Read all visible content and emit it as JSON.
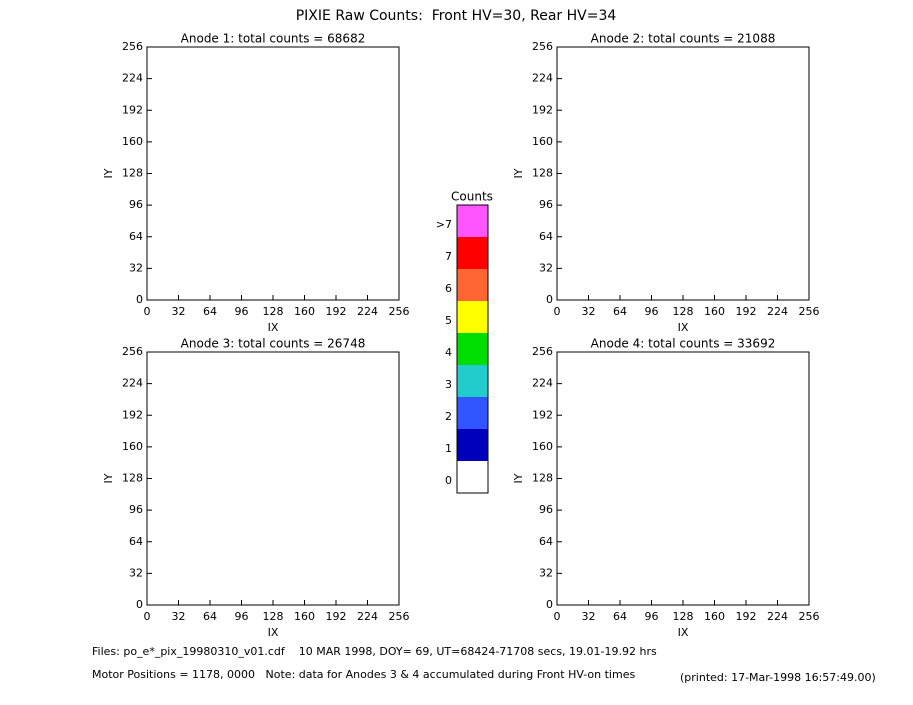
{
  "title": "PIXIE Raw Counts:  Front HV=30, Rear HV=34",
  "chart_data": [
    {
      "type": "heatmap",
      "title": "Anode 1: total counts = 68682",
      "xlabel": "IX",
      "ylabel": "IY",
      "xlim": [
        0,
        256
      ],
      "ylim": [
        0,
        256
      ],
      "xticks": [
        0,
        32,
        64,
        96,
        128,
        160,
        192,
        224,
        256
      ],
      "yticks": [
        0,
        32,
        64,
        96,
        128,
        160,
        192,
        224,
        256
      ]
    },
    {
      "type": "heatmap",
      "title": "Anode 2: total counts = 21088",
      "xlabel": "IX",
      "ylabel": "IY",
      "xlim": [
        0,
        256
      ],
      "ylim": [
        0,
        256
      ],
      "xticks": [
        0,
        32,
        64,
        96,
        128,
        160,
        192,
        224,
        256
      ],
      "yticks": [
        0,
        32,
        64,
        96,
        128,
        160,
        192,
        224,
        256
      ]
    },
    {
      "type": "heatmap",
      "title": "Anode 3: total counts = 26748",
      "xlabel": "IX",
      "ylabel": "IY",
      "xlim": [
        0,
        256
      ],
      "ylim": [
        0,
        256
      ],
      "xticks": [
        0,
        32,
        64,
        96,
        128,
        160,
        192,
        224,
        256
      ],
      "yticks": [
        0,
        32,
        64,
        96,
        128,
        160,
        192,
        224,
        256
      ]
    },
    {
      "type": "heatmap",
      "title": "Anode 4: total counts = 33692",
      "xlabel": "IX",
      "ylabel": "IY",
      "xlim": [
        0,
        256
      ],
      "ylim": [
        0,
        256
      ],
      "xticks": [
        0,
        32,
        64,
        96,
        128,
        160,
        192,
        224,
        256
      ],
      "yticks": [
        0,
        32,
        64,
        96,
        128,
        160,
        192,
        224,
        256
      ]
    }
  ],
  "colorbar": {
    "title": "Counts",
    "levels": [
      {
        "label": ">7",
        "color": "#ff55ff"
      },
      {
        "label": "7",
        "color": "#ff0000"
      },
      {
        "label": "6",
        "color": "#ff6633"
      },
      {
        "label": "5",
        "color": "#ffff00"
      },
      {
        "label": "4",
        "color": "#00dd00"
      },
      {
        "label": "3",
        "color": "#22cccc"
      },
      {
        "label": "2",
        "color": "#3355ff"
      },
      {
        "label": "1",
        "color": "#0000bb"
      },
      {
        "label": "0",
        "color": "#ffffff"
      }
    ]
  },
  "footer": {
    "files": "Files: po_e*_pix_19980310_v01.cdf    10 MAR 1998, DOY= 69, UT=68424-71708 secs, 19.01-19.92 hrs",
    "motor": "Motor Positions = 1178, 0000   Note: data for Anodes 3 & 4 accumulated during Front HV-on times",
    "printed": "(printed: 17-Mar-1998 16:57:49.00)"
  }
}
